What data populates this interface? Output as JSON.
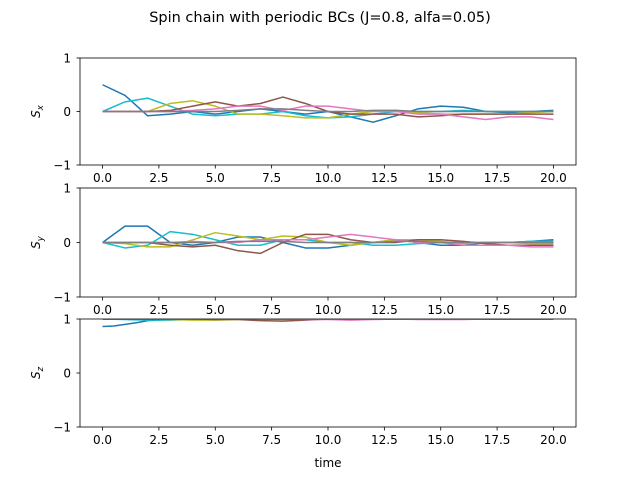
{
  "figure": {
    "title": "Spin chain with periodic BCs (J=0.8, alfa=0.05)",
    "xlabel": "time"
  },
  "chart_data": [
    {
      "type": "line",
      "ylabel_base": "S",
      "ylabel_sub": "x",
      "xlim": [
        -1,
        21
      ],
      "ylim": [
        -1,
        1
      ],
      "xticks": [
        "0.0",
        "2.5",
        "5.0",
        "7.5",
        "10.0",
        "12.5",
        "15.0",
        "17.5",
        "20.0"
      ],
      "yticks": [
        "1",
        "0",
        "−1"
      ],
      "grid": false,
      "series": [
        {
          "color": "#1f77b4",
          "x": [
            0,
            1,
            2,
            3,
            4,
            5,
            6,
            7,
            8,
            9,
            10,
            11,
            12,
            13,
            14,
            15,
            16,
            17,
            18,
            19,
            20
          ],
          "values": [
            0.5,
            0.3,
            -0.08,
            -0.05,
            0.0,
            -0.05,
            0.0,
            0.05,
            0.0,
            -0.05,
            0.0,
            -0.1,
            -0.2,
            -0.08,
            0.05,
            0.1,
            0.08,
            0.0,
            -0.02,
            0.0,
            0.02
          ]
        },
        {
          "color": "#17becf",
          "x": [
            0,
            1,
            2,
            3,
            4,
            5,
            6,
            7,
            8,
            9,
            10,
            11,
            12,
            13,
            14,
            15,
            16,
            17,
            18,
            19,
            20
          ],
          "values": [
            0.0,
            0.18,
            0.25,
            0.1,
            -0.05,
            -0.08,
            -0.05,
            -0.05,
            0.0,
            -0.08,
            -0.12,
            -0.1,
            -0.05,
            0.0,
            0.0,
            0.0,
            0.02,
            0.0,
            0.0,
            0.0,
            0.0
          ]
        },
        {
          "color": "#bcbd22",
          "x": [
            0,
            1,
            2,
            3,
            4,
            5,
            6,
            7,
            8,
            9,
            10,
            11,
            12,
            13,
            14,
            15,
            16,
            17,
            18,
            19,
            20
          ],
          "values": [
            0.0,
            0.0,
            0.0,
            0.15,
            0.2,
            0.1,
            -0.05,
            -0.05,
            -0.08,
            -0.12,
            -0.12,
            -0.05,
            0.0,
            0.02,
            -0.02,
            -0.05,
            -0.05,
            -0.05,
            -0.05,
            -0.02,
            0.0
          ]
        },
        {
          "color": "#8c564b",
          "x": [
            0,
            1,
            2,
            3,
            4,
            5,
            6,
            7,
            8,
            9,
            10,
            11,
            12,
            13,
            14,
            15,
            16,
            17,
            18,
            19,
            20
          ],
          "values": [
            0.0,
            0.0,
            0.0,
            0.02,
            0.1,
            0.18,
            0.1,
            0.15,
            0.27,
            0.15,
            0.0,
            -0.05,
            -0.05,
            -0.05,
            -0.1,
            -0.08,
            -0.05,
            -0.05,
            -0.05,
            -0.05,
            -0.05
          ]
        },
        {
          "color": "#e377c2",
          "x": [
            0,
            1,
            2,
            3,
            4,
            5,
            6,
            7,
            8,
            9,
            10,
            11,
            12,
            13,
            14,
            15,
            16,
            17,
            18,
            19,
            20
          ],
          "values": [
            0.0,
            0.0,
            0.0,
            0.0,
            0.02,
            0.05,
            0.1,
            0.1,
            0.02,
            0.1,
            0.1,
            0.05,
            0.0,
            0.0,
            -0.05,
            -0.05,
            -0.1,
            -0.15,
            -0.1,
            -0.1,
            -0.15
          ]
        },
        {
          "color": "#7f7f7f",
          "x": [
            0,
            1,
            2,
            3,
            4,
            5,
            6,
            7,
            8,
            9,
            10,
            11,
            12,
            13,
            14,
            15,
            16,
            17,
            18,
            19,
            20
          ],
          "values": [
            0.0,
            0.0,
            0.0,
            0.0,
            0.0,
            0.0,
            0.02,
            0.05,
            0.05,
            0.02,
            0.0,
            0.0,
            0.02,
            0.02,
            0.0,
            0.0,
            0.0,
            0.0,
            0.0,
            0.0,
            0.0
          ]
        }
      ]
    },
    {
      "type": "line",
      "ylabel_base": "S",
      "ylabel_sub": "y",
      "xlim": [
        -1,
        21
      ],
      "ylim": [
        -1,
        1
      ],
      "xticks": [
        "0.0",
        "2.5",
        "5.0",
        "7.5",
        "10.0",
        "12.5",
        "15.0",
        "17.5",
        "20.0"
      ],
      "yticks": [
        "1",
        "0",
        "−1"
      ],
      "grid": false,
      "series": [
        {
          "color": "#1f77b4",
          "x": [
            0,
            1,
            2,
            3,
            4,
            5,
            6,
            7,
            8,
            9,
            10,
            11,
            12,
            13,
            14,
            15,
            16,
            17,
            18,
            19,
            20
          ],
          "values": [
            0.0,
            0.3,
            0.3,
            0.0,
            -0.05,
            0.0,
            0.1,
            0.1,
            0.0,
            -0.1,
            -0.1,
            -0.05,
            0.0,
            0.05,
            0.0,
            -0.05,
            -0.05,
            0.0,
            0.0,
            0.02,
            0.05
          ]
        },
        {
          "color": "#17becf",
          "x": [
            0,
            1,
            2,
            3,
            4,
            5,
            6,
            7,
            8,
            9,
            10,
            11,
            12,
            13,
            14,
            15,
            16,
            17,
            18,
            19,
            20
          ],
          "values": [
            0.0,
            -0.1,
            -0.05,
            0.2,
            0.15,
            0.05,
            -0.05,
            -0.05,
            0.05,
            0.05,
            0.0,
            0.0,
            -0.05,
            -0.05,
            -0.02,
            0.0,
            0.0,
            0.0,
            0.0,
            0.02,
            0.02
          ]
        },
        {
          "color": "#bcbd22",
          "x": [
            0,
            1,
            2,
            3,
            4,
            5,
            6,
            7,
            8,
            9,
            10,
            11,
            12,
            13,
            14,
            15,
            16,
            17,
            18,
            19,
            20
          ],
          "values": [
            0.0,
            -0.02,
            -0.08,
            -0.08,
            0.05,
            0.18,
            0.12,
            0.05,
            0.12,
            0.1,
            0.0,
            -0.05,
            0.0,
            0.05,
            0.05,
            0.02,
            -0.02,
            0.0,
            0.0,
            -0.02,
            -0.02
          ]
        },
        {
          "color": "#8c564b",
          "x": [
            0,
            1,
            2,
            3,
            4,
            5,
            6,
            7,
            8,
            9,
            10,
            11,
            12,
            13,
            14,
            15,
            16,
            17,
            18,
            19,
            20
          ],
          "values": [
            0.0,
            0.0,
            0.0,
            -0.05,
            -0.08,
            -0.05,
            -0.15,
            -0.2,
            0.0,
            0.15,
            0.15,
            0.05,
            0.0,
            0.0,
            0.05,
            0.05,
            0.02,
            -0.02,
            -0.05,
            -0.05,
            -0.05
          ]
        },
        {
          "color": "#e377c2",
          "x": [
            0,
            1,
            2,
            3,
            4,
            5,
            6,
            7,
            8,
            9,
            10,
            11,
            12,
            13,
            14,
            15,
            16,
            17,
            18,
            19,
            20
          ],
          "values": [
            0.0,
            0.0,
            0.0,
            0.0,
            0.02,
            0.0,
            0.0,
            0.05,
            0.05,
            0.05,
            0.1,
            0.15,
            0.1,
            0.05,
            0.0,
            0.0,
            -0.05,
            -0.05,
            -0.05,
            -0.08,
            -0.08
          ]
        },
        {
          "color": "#7f7f7f",
          "x": [
            0,
            1,
            2,
            3,
            4,
            5,
            6,
            7,
            8,
            9,
            10,
            11,
            12,
            13,
            14,
            15,
            16,
            17,
            18,
            19,
            20
          ],
          "values": [
            0.0,
            0.0,
            0.0,
            0.0,
            0.0,
            0.0,
            0.02,
            0.02,
            0.02,
            0.0,
            0.0,
            0.0,
            0.0,
            0.02,
            0.02,
            0.0,
            0.0,
            0.0,
            0.0,
            0.0,
            0.0
          ]
        }
      ]
    },
    {
      "type": "line",
      "ylabel_base": "S",
      "ylabel_sub": "z",
      "xlim": [
        -1,
        21
      ],
      "ylim": [
        -1,
        1
      ],
      "xticks": [
        "0.0",
        "2.5",
        "5.0",
        "7.5",
        "10.0",
        "12.5",
        "15.0",
        "17.5",
        "20.0"
      ],
      "yticks": [
        "1",
        "0",
        "−1"
      ],
      "grid": false,
      "series": [
        {
          "color": "#1f77b4",
          "x": [
            0,
            0.5,
            1,
            1.5,
            2,
            3,
            4,
            5,
            6,
            7,
            8,
            9,
            10,
            11,
            12,
            13,
            14,
            15,
            16,
            17,
            18,
            19,
            20
          ],
          "values": [
            0.86,
            0.87,
            0.9,
            0.93,
            0.97,
            0.99,
            1.0,
            1.0,
            1.0,
            1.0,
            1.0,
            1.0,
            1.0,
            1.0,
            1.0,
            1.0,
            1.0,
            1.0,
            1.0,
            1.0,
            1.0,
            1.0,
            1.0
          ]
        },
        {
          "color": "#17becf",
          "x": [
            0,
            1,
            2,
            3,
            4,
            5,
            6,
            7,
            8,
            9,
            10,
            11,
            12,
            13,
            14,
            15,
            16,
            17,
            18,
            19,
            20
          ],
          "values": [
            1.0,
            0.99,
            0.98,
            0.98,
            0.99,
            1.0,
            1.0,
            1.0,
            1.0,
            1.0,
            1.0,
            1.0,
            1.0,
            1.0,
            1.0,
            1.0,
            1.0,
            1.0,
            1.0,
            1.0,
            1.0
          ]
        },
        {
          "color": "#bcbd22",
          "x": [
            0,
            1,
            2,
            3,
            4,
            5,
            6,
            7,
            8,
            9,
            10,
            11,
            12,
            13,
            14,
            15,
            16,
            17,
            18,
            19,
            20
          ],
          "values": [
            1.0,
            1.0,
            1.0,
            0.99,
            0.98,
            0.98,
            0.99,
            1.0,
            0.99,
            0.99,
            1.0,
            1.0,
            1.0,
            1.0,
            1.0,
            1.0,
            1.0,
            1.0,
            1.0,
            1.0,
            1.0
          ]
        },
        {
          "color": "#8c564b",
          "x": [
            0,
            1,
            2,
            3,
            4,
            5,
            6,
            7,
            8,
            9,
            10,
            11,
            12,
            13,
            14,
            15,
            16,
            17,
            18,
            19,
            20
          ],
          "values": [
            1.0,
            1.0,
            1.0,
            1.0,
            1.0,
            0.99,
            0.99,
            0.97,
            0.96,
            0.98,
            1.0,
            1.0,
            1.0,
            1.0,
            1.0,
            1.0,
            1.0,
            1.0,
            1.0,
            1.0,
            1.0
          ]
        },
        {
          "color": "#e377c2",
          "x": [
            0,
            1,
            2,
            3,
            4,
            5,
            6,
            7,
            8,
            9,
            10,
            11,
            12,
            13,
            14,
            15,
            16,
            17,
            18,
            19,
            20
          ],
          "values": [
            1.0,
            1.0,
            1.0,
            1.0,
            1.0,
            1.0,
            1.0,
            1.0,
            1.0,
            0.99,
            0.99,
            0.98,
            0.99,
            1.0,
            0.99,
            0.99,
            0.99,
            1.0,
            1.0,
            1.0,
            1.0
          ]
        }
      ]
    }
  ]
}
